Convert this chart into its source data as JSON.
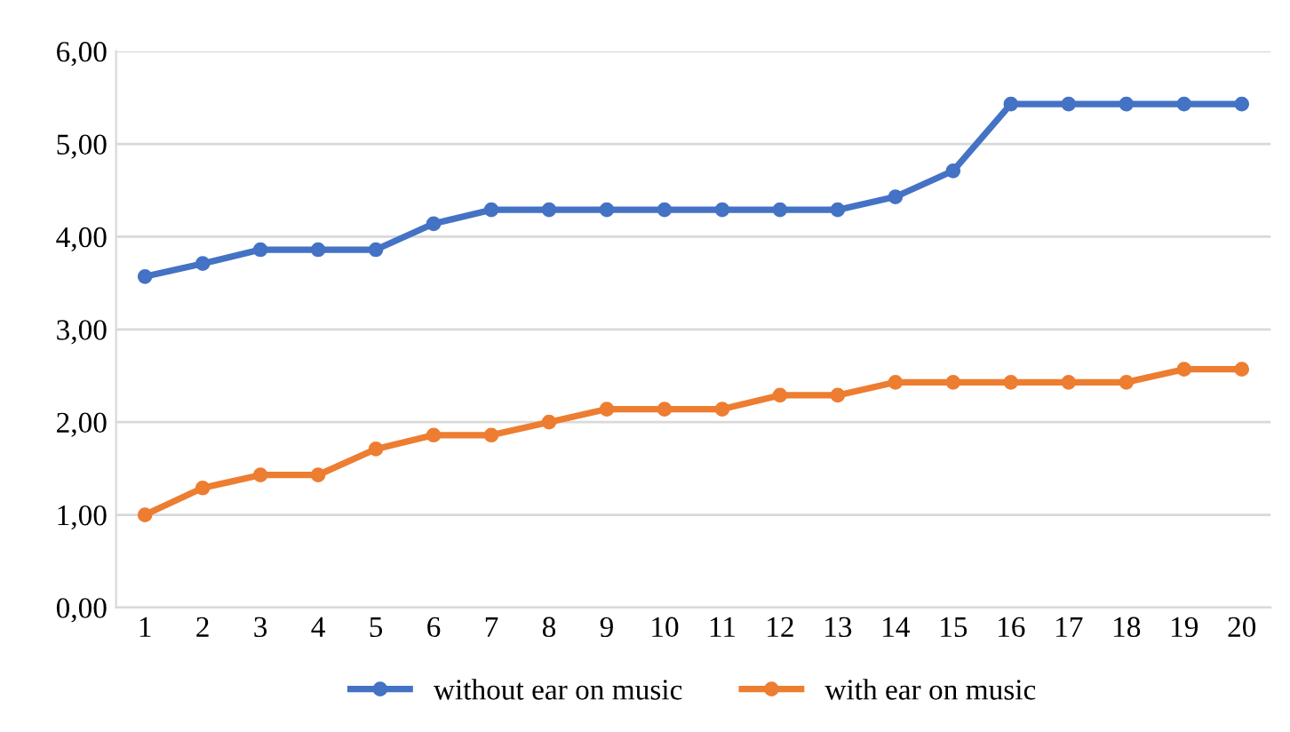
{
  "chart_data": {
    "type": "line",
    "categories": [
      "1",
      "2",
      "3",
      "4",
      "5",
      "6",
      "7",
      "8",
      "9",
      "10",
      "11",
      "12",
      "13",
      "14",
      "15",
      "16",
      "17",
      "18",
      "19",
      "20"
    ],
    "series": [
      {
        "name": "without ear on music",
        "color": "#4472c4",
        "values": [
          3.57,
          3.71,
          3.86,
          3.86,
          3.86,
          4.14,
          4.29,
          4.29,
          4.29,
          4.29,
          4.29,
          4.29,
          4.29,
          4.43,
          4.71,
          5.43,
          5.43,
          5.43,
          5.43,
          5.43
        ]
      },
      {
        "name": "with ear on music",
        "color": "#ed7d31",
        "values": [
          1.0,
          1.29,
          1.43,
          1.43,
          1.71,
          1.86,
          1.86,
          2.0,
          2.14,
          2.14,
          2.14,
          2.29,
          2.29,
          2.43,
          2.43,
          2.43,
          2.43,
          2.43,
          2.57,
          2.57
        ]
      }
    ],
    "ylim": [
      0,
      6
    ],
    "yticks": [
      {
        "value": 0,
        "label": "0,00"
      },
      {
        "value": 1,
        "label": "1,00"
      },
      {
        "value": 2,
        "label": "2,00"
      },
      {
        "value": 3,
        "label": "3,00"
      },
      {
        "value": 4,
        "label": "4,00"
      },
      {
        "value": 5,
        "label": "5,00"
      },
      {
        "value": 6,
        "label": "6,00"
      }
    ],
    "grid": "y",
    "legend": "bottom",
    "marker": "circle",
    "line_style": "solid"
  }
}
